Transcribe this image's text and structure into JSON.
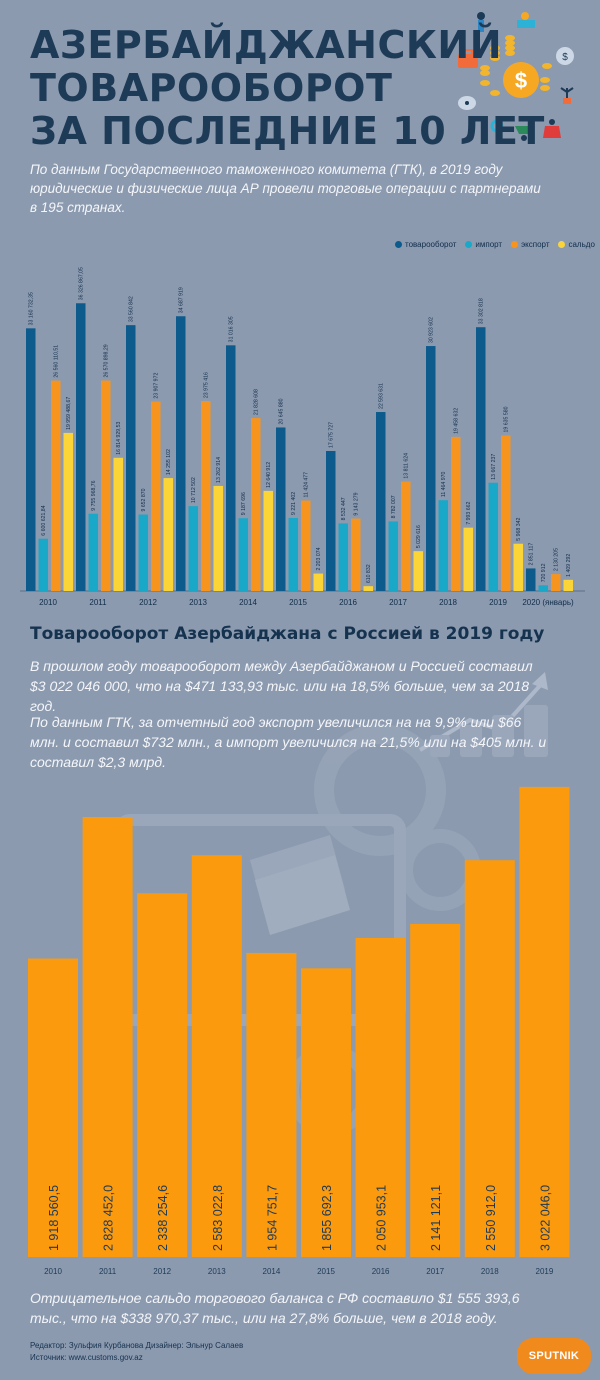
{
  "title_lines": [
    "АЗЕРБАЙДЖАНСКИЙ",
    "ТОВАРООБОРОТ",
    "ЗА ПОСЛЕДНИЕ 10 ЛЕТ"
  ],
  "intro": "По данным Государственного таможенного комитета (ГТК), в 2019 году юридические и физические лица АР провели торговые операции с партнерами в 195 странах.",
  "section2": {
    "title": "Товарооборот Азербайджана с Россией в 2019 году",
    "p1": "В прошлом году товарооборот между Азербайджаном и Россией составил $3 022 046 000, что на $471 133,93 тыс. или на 18,5% больше, чем за 2018 год.",
    "p2": "По данным ГТК, за отчетный год экспорт увеличился на на 9,9% или $66 млн. и составил $732 млн., а импорт увеличился на 21,5% или на $405 млн. и составил $2,3 млрд.",
    "bottom_note": "Отрицательное сальдо торгового баланса с РФ составило $1 555 393,6 тыс., что на $338 970,37 тыс., или на 27,8% больше, чем в 2018 году."
  },
  "footer": {
    "line1": "Редактор: Зульфия Курбанова  Дизайнер: Эльнур Салаев",
    "line2": "Источник: www.customs.gov.az"
  },
  "logo_text": "SPUTNIK",
  "colors": {
    "background": "#8c9aaf",
    "turnover": "#0c5b8c",
    "import": "#1aa8c8",
    "export": "#f7941d",
    "balance": "#fbd437",
    "russia_bar": "#fb9a0d",
    "title": "#1d3a56"
  },
  "chart_data": [
    {
      "type": "bar",
      "categories": [
        "2010",
        "2011",
        "2012",
        "2013",
        "2014",
        "2015",
        "2016",
        "2017",
        "2018",
        "2019",
        "2020 (январь)"
      ],
      "series": [
        {
          "name": "товарооборот",
          "color": "#0c5b8c",
          "values": [
            33160732.35,
            36326867.05,
            33560842,
            34687919,
            31016305,
            20645880,
            17675727,
            22593631,
            30923602,
            33302818,
            2851117
          ],
          "labels": [
            "33 160 732,35",
            "36 326 867,05",
            "33 560 842",
            "34 687 919",
            "31 016 305",
            "20 645 880",
            "17 675 727",
            "22 593 631",
            "30 923 602",
            "33 302 818",
            "2 851 117"
          ]
        },
        {
          "name": "импорт",
          "color": "#1aa8c8",
          "values": [
            6600621.84,
            9755968.76,
            9652870,
            10712502,
            9187696,
            9221402,
            8532447,
            8782007,
            11464970,
            13667237,
            720912
          ],
          "labels": [
            "6 600 621,84",
            "9 755 968,76",
            "9 652 870",
            "10 712 502",
            "9 187 696",
            "9 221 402",
            "8 532 447",
            "8 782 007",
            "11 464 970",
            "13 667 237",
            "720 912"
          ]
        },
        {
          "name": "экспорт",
          "color": "#f7941d",
          "values": [
            26560110.51,
            26570898.29,
            23907972,
            23975416,
            21828608,
            11424477,
            9143279,
            13811624,
            19458632,
            19635580,
            2130205
          ],
          "labels": [
            "26 560 110,51",
            "26 570 898,29",
            "23 907 972",
            "23 975 416",
            "21 828 608",
            "11 424 477",
            "9 143 279",
            "13 811 624",
            "19 458 632",
            "19 635 580",
            "2 130 205"
          ]
        },
        {
          "name": "сальдо",
          "color": "#fbd437",
          "values": [
            19959488.67,
            16814929.53,
            14255102,
            13262914,
            12640912,
            2203074,
            610832,
            5029616,
            7993662,
            5968342,
            1409292
          ],
          "labels": [
            "19 959 488,67",
            "16 814 929,53",
            "14 255 102",
            "13 262 914",
            "12 640 912",
            "2 203 074",
            "610 832",
            "5 029 616",
            "7 993 662",
            "5 968 342",
            "1 409 292"
          ]
        }
      ],
      "legend_position": "top-right",
      "ylim": [
        0,
        38000000
      ]
    },
    {
      "type": "bar",
      "categories": [
        "2010",
        "2011",
        "2012",
        "2013",
        "2014",
        "2015",
        "2016",
        "2017",
        "2018",
        "2019"
      ],
      "values": [
        1918560.5,
        2828452.0,
        2338254.6,
        2583022.8,
        1954751.7,
        1855692.3,
        2050953.1,
        2141121.1,
        2550912.0,
        3022046.0
      ],
      "labels": [
        "1 918 560,5",
        "2 828 452,0",
        "2 338 254,6",
        "2 583 022,8",
        "1 954 751,7",
        "1 855 692,3",
        "2 050 953,1",
        "2 141 121,1",
        "2 550 912,0",
        "3 022 046,0"
      ],
      "color": "#fb9a0d",
      "ylim": [
        0,
        3150000
      ]
    }
  ]
}
